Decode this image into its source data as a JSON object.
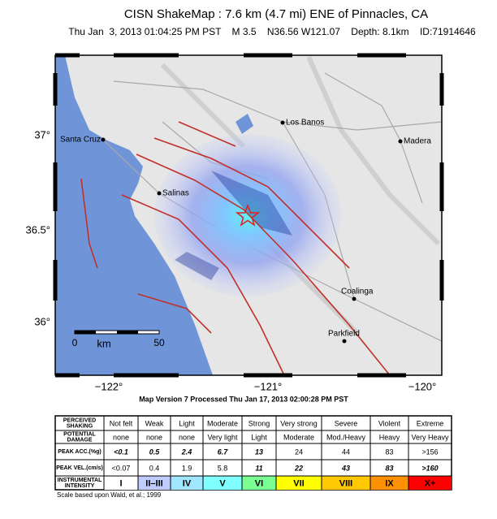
{
  "header": {
    "title": "CISN ShakeMap : 7.6 km (4.7 mi) ENE of Pinnacles, CA",
    "subtitle": "Thu Jan  3, 2013 01:04:25 PM PST    M 3.5    N36.56 W121.07    Depth: 8.1km    ID:71914646"
  },
  "map": {
    "lat_labels": [
      "37°",
      "36.5°",
      "36°"
    ],
    "lon_labels": [
      "−122°",
      "−121°",
      "−120°"
    ],
    "cities": [
      "Los Banos",
      "Santa Cruz",
      "Madera",
      "Salinas",
      "Coalinga",
      "Parkfield"
    ],
    "scale": {
      "unit": "km",
      "labels": [
        "0",
        "50"
      ]
    }
  },
  "footer": {
    "version": "Map Version 7 Processed Thu Jan 17, 2013 02:00:28 PM PST",
    "credit": "Scale based upon Wald, et al.; 1999"
  },
  "table": {
    "row_headers": [
      [
        "PERCEIVED",
        "SHAKING"
      ],
      [
        "POTENTIAL",
        "DAMAGE"
      ],
      [
        "PEAK ACC.(%g)"
      ],
      [
        "PEAK VEL.(cm/s)"
      ],
      [
        "INSTRUMENTAL",
        "INTENSITY"
      ]
    ],
    "rows": [
      [
        "Not felt",
        "Weak",
        "Light",
        "Moderate",
        "Strong",
        "Very strong",
        "Severe",
        "Violent",
        "Extreme"
      ],
      [
        "none",
        "none",
        "none",
        "Very light",
        "Light",
        "Moderate",
        "Mod./Heavy",
        "Heavy",
        "Very Heavy"
      ],
      [
        "<0.1",
        "0.5",
        "2.4",
        "6.7",
        "13",
        "24",
        "44",
        "83",
        ">156"
      ],
      [
        "<0.07",
        "0.4",
        "1.9",
        "5.8",
        "11",
        "22",
        "43",
        "83",
        ">160"
      ],
      [
        "I",
        "II–III",
        "IV",
        "V",
        "VI",
        "VII",
        "VIII",
        "IX",
        "X+"
      ]
    ]
  }
}
